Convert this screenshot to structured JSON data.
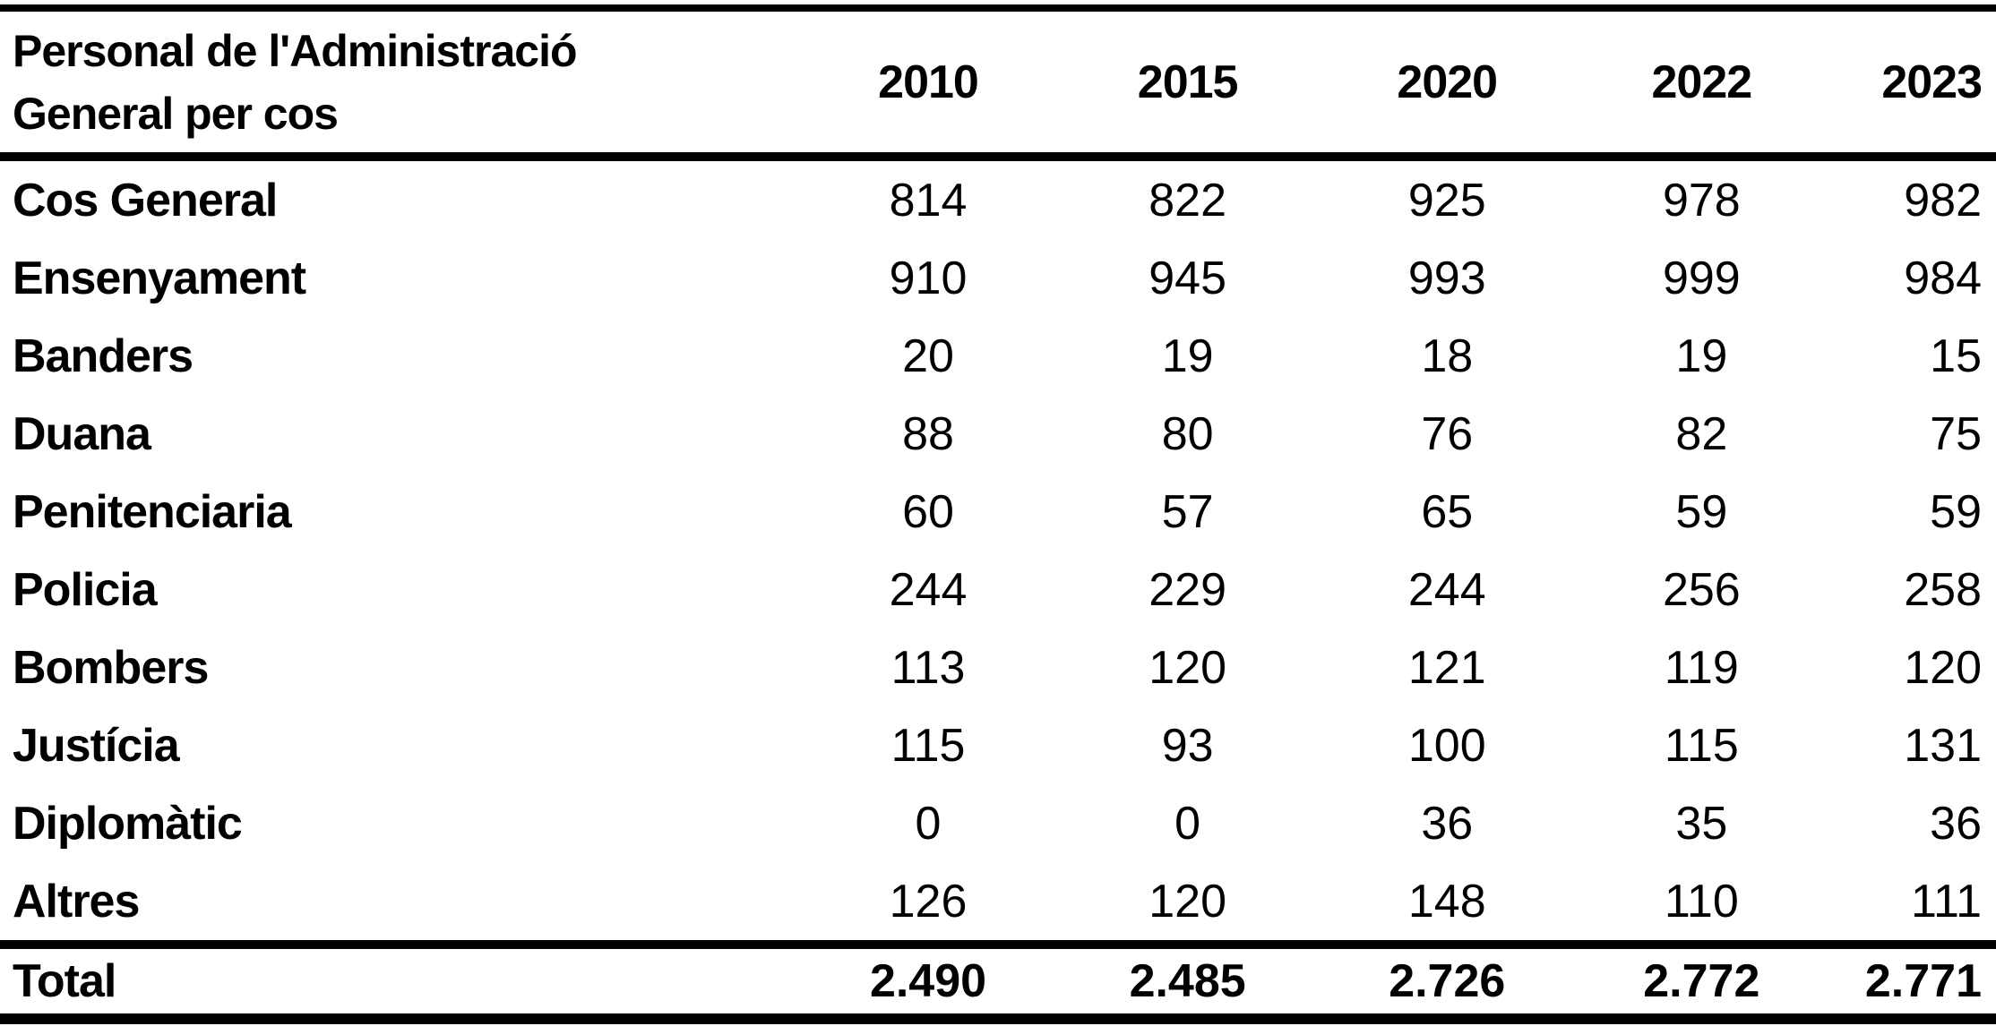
{
  "colors": {
    "background": "#ffffff",
    "text": "#000000",
    "rule": "#000000"
  },
  "chart_data": {
    "type": "table",
    "title": "Personal de l'Administració General per cos",
    "title_lines": [
      "Personal de l'Administració",
      "General per cos"
    ],
    "categories": [
      "2010",
      "2015",
      "2020",
      "2022",
      "2023"
    ],
    "series": [
      {
        "name": "Cos General",
        "values": [
          814,
          822,
          925,
          978,
          982
        ]
      },
      {
        "name": "Ensenyament",
        "values": [
          910,
          945,
          993,
          999,
          984
        ]
      },
      {
        "name": "Banders",
        "values": [
          20,
          19,
          18,
          19,
          15
        ]
      },
      {
        "name": "Duana",
        "values": [
          88,
          80,
          76,
          82,
          75
        ]
      },
      {
        "name": "Penitenciaria",
        "values": [
          60,
          57,
          65,
          59,
          59
        ]
      },
      {
        "name": "Policia",
        "values": [
          244,
          229,
          244,
          256,
          258
        ]
      },
      {
        "name": "Bombers",
        "values": [
          113,
          120,
          121,
          119,
          120
        ]
      },
      {
        "name": "Justícia",
        "values": [
          115,
          93,
          100,
          115,
          131
        ]
      },
      {
        "name": "Diplomàtic",
        "values": [
          0,
          0,
          36,
          35,
          36
        ]
      },
      {
        "name": "Altres",
        "values": [
          126,
          120,
          148,
          110,
          111
        ]
      }
    ],
    "total": {
      "name": "Total",
      "display_values": [
        "2.490",
        "2.485",
        "2.726",
        "2.772",
        "2.771"
      ],
      "values": [
        2490,
        2485,
        2726,
        2772,
        2771
      ]
    },
    "layout": {
      "first_column_align": "left",
      "value_columns_align": "center",
      "last_column_align": "right",
      "rules": [
        "top",
        "below-header",
        "above-total",
        "bottom"
      ],
      "grid": "horizontal-rules-only"
    }
  }
}
